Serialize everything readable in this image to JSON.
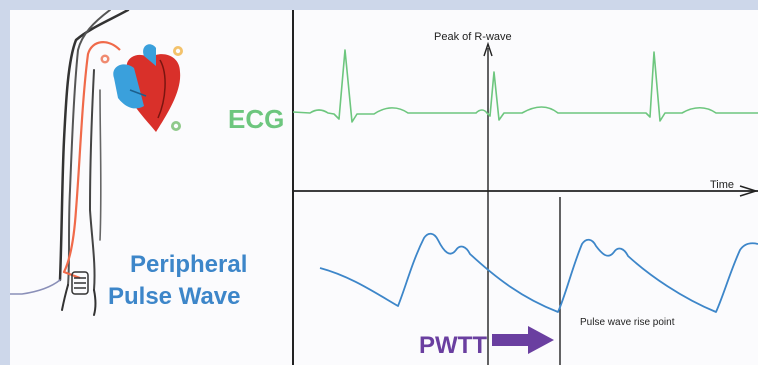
{
  "labels": {
    "ecg": "ECG",
    "peripheral_line1": "Peripheral",
    "peripheral_line2": "Pulse Wave",
    "peak": "Peak of R-wave",
    "time": "Time",
    "rise_point": "Pulse wave rise point",
    "pwtt": "PWTT"
  },
  "colors": {
    "ecg": "#6dc67e",
    "pulse_wave": "#3d86c9",
    "pwtt": "#6a3fa0",
    "artery": "#f06a4a",
    "heart_red": "#d9302a",
    "heart_blue": "#3aa0dc"
  },
  "icons": {
    "body_outline": "arm-outline-illustration",
    "heart": "heart-icon",
    "sensor": "finger-sensor-icon",
    "arrow": "right-arrow-icon"
  }
}
